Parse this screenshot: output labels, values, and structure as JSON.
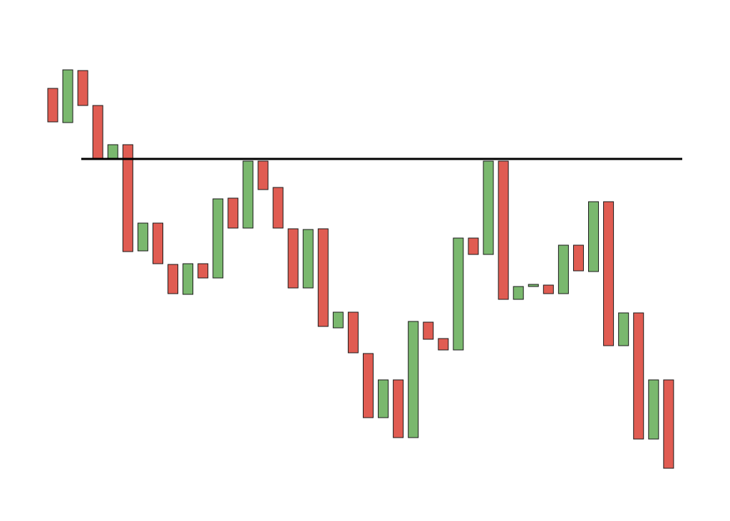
{
  "chart_data": {
    "type": "candlestick",
    "open": [
      607,
      559,
      632,
      583,
      508,
      528,
      379,
      418,
      360,
      318,
      361,
      341,
      453,
      411,
      505,
      468,
      410,
      327,
      410,
      271,
      293,
      235,
      145,
      198,
      117,
      279,
      256,
      240,
      397,
      374,
      505,
      311,
      329,
      331,
      319,
      387,
      350,
      448,
      246,
      292,
      115,
      198
    ],
    "close": [
      560,
      633,
      583,
      508,
      528,
      378,
      418,
      361,
      319,
      361,
      341,
      452,
      411,
      505,
      465,
      411,
      327,
      409,
      273,
      293,
      236,
      145,
      198,
      117,
      280,
      255,
      240,
      397,
      374,
      505,
      311,
      329,
      332,
      319,
      387,
      351,
      448,
      246,
      292,
      115,
      198,
      74
    ],
    "ylim": [
      0,
      731
    ],
    "up_color": "#7ab86e",
    "down_color": "#e05c52",
    "resistance": 508
  }
}
